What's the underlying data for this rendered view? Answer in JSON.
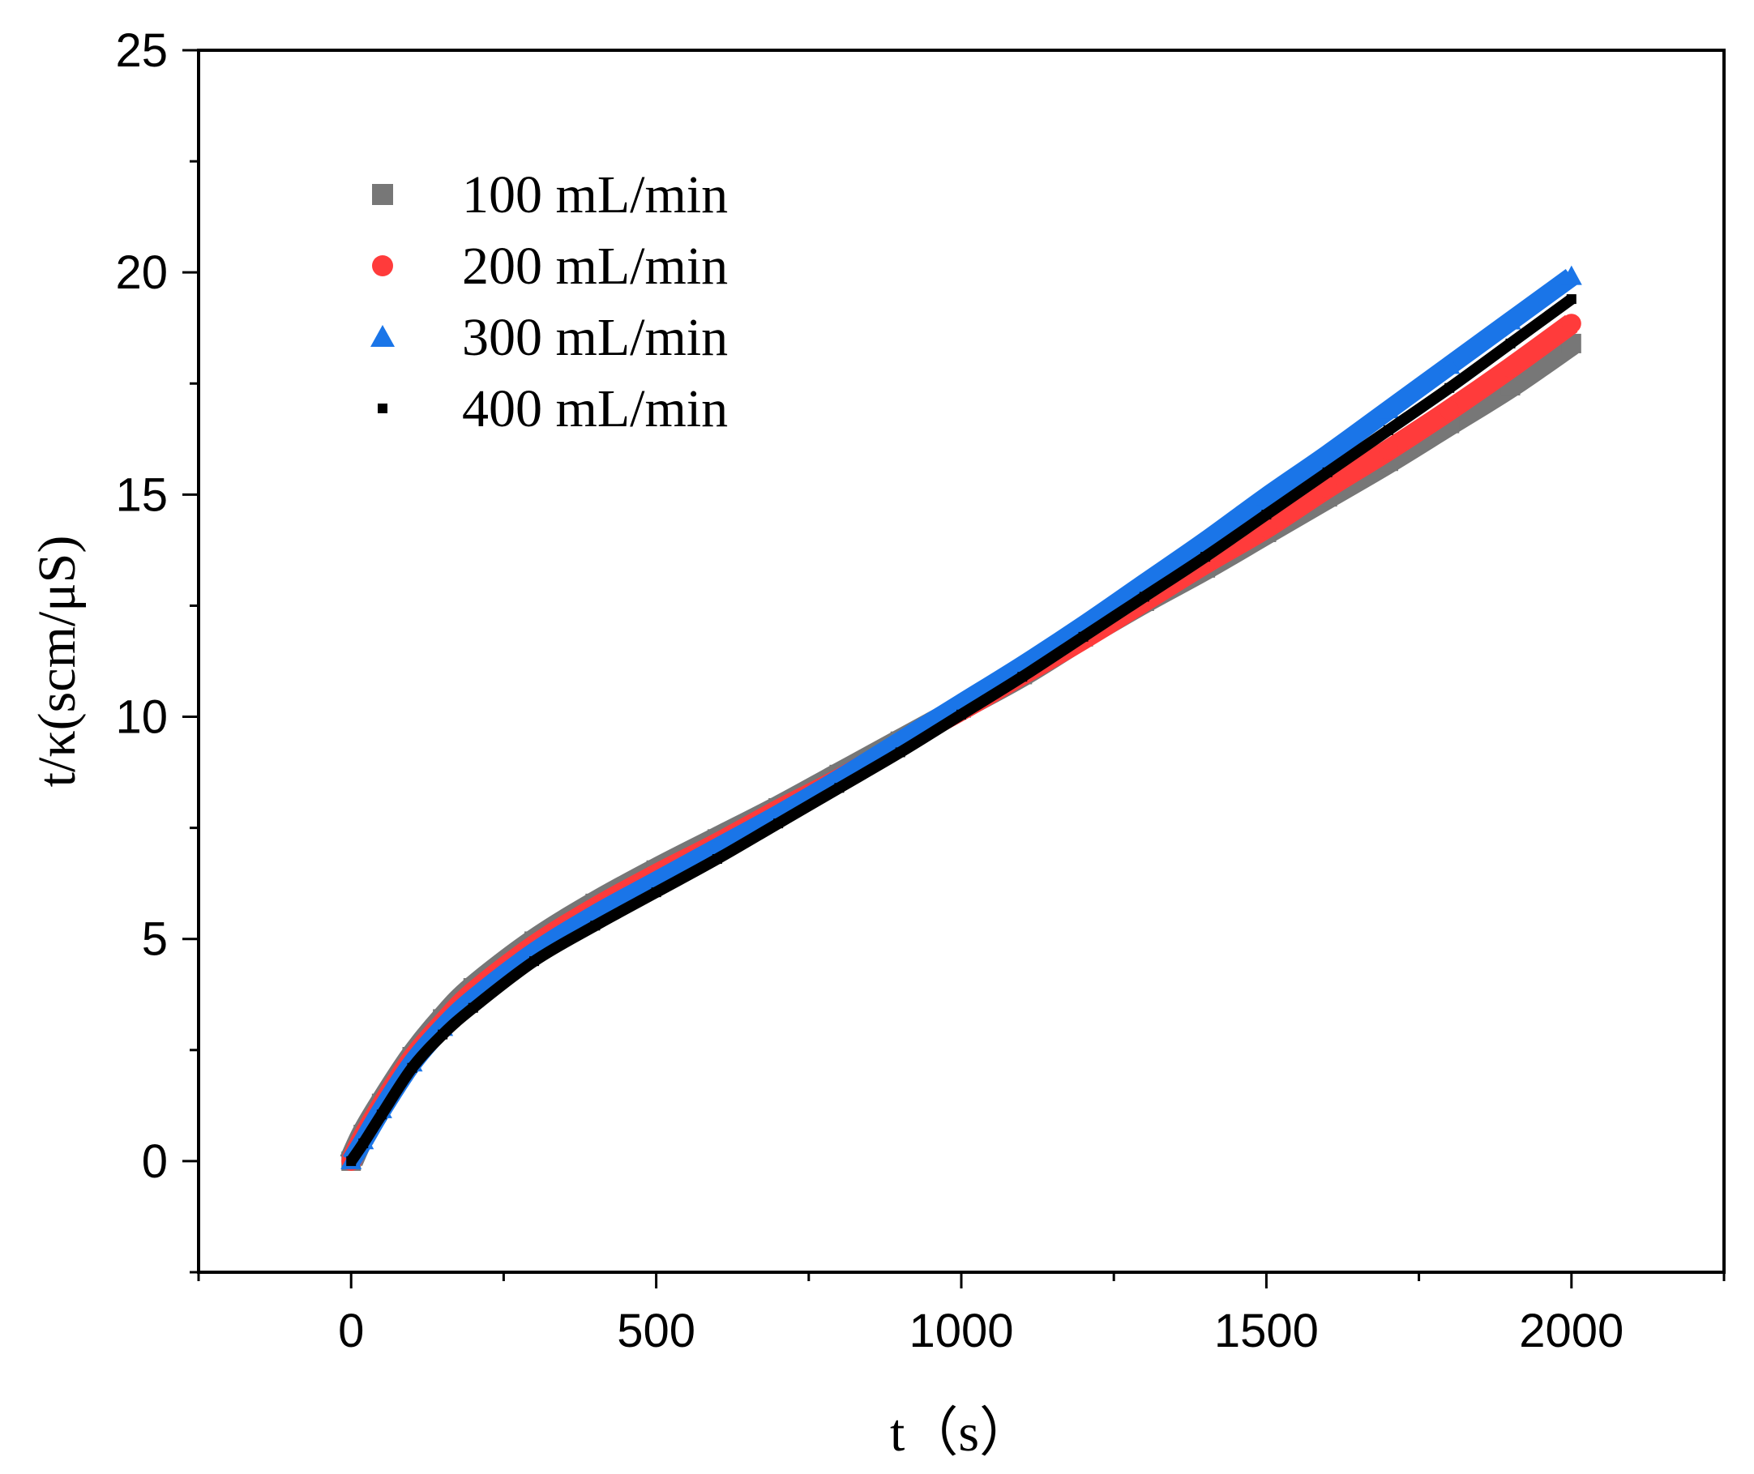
{
  "chart_data": {
    "type": "scatter",
    "xlabel": "t（s）",
    "ylabel": "t/κ(scm/μS)",
    "xlim": [
      -250,
      2250
    ],
    "ylim": [
      -2.5,
      25
    ],
    "xticks": [
      0,
      500,
      1000,
      1500,
      2000
    ],
    "yticks": [
      0,
      5,
      10,
      15,
      20,
      25
    ],
    "legend_position": "top-left",
    "grid": false,
    "series": [
      {
        "name": "100 mL/min",
        "color": "#777777",
        "marker": "square",
        "x": [
          0,
          20,
          50,
          100,
          150,
          200,
          300,
          400,
          500,
          600,
          700,
          800,
          900,
          1000,
          1100,
          1200,
          1300,
          1400,
          1500,
          1600,
          1700,
          1800,
          1900,
          2000
        ],
        "y": [
          0,
          0.6,
          1.3,
          2.35,
          3.2,
          3.9,
          4.95,
          5.8,
          6.55,
          7.25,
          7.95,
          8.7,
          9.45,
          10.2,
          10.95,
          11.8,
          12.6,
          13.35,
          14.15,
          14.95,
          15.75,
          16.6,
          17.45,
          18.4
        ]
      },
      {
        "name": "200 mL/min",
        "color": "#ff3b3b",
        "marker": "circle",
        "x": [
          0,
          20,
          50,
          100,
          150,
          200,
          300,
          400,
          500,
          600,
          700,
          800,
          900,
          1000,
          1100,
          1200,
          1300,
          1400,
          1500,
          1600,
          1700,
          1800,
          1900,
          2000
        ],
        "y": [
          0,
          0.55,
          1.25,
          2.3,
          3.1,
          3.8,
          4.85,
          5.7,
          6.45,
          7.15,
          7.9,
          8.6,
          9.4,
          10.15,
          10.95,
          11.75,
          12.6,
          13.45,
          14.25,
          15.15,
          16.0,
          16.9,
          17.85,
          18.85
        ]
      },
      {
        "name": "300 mL/min",
        "color": "#1a75e8",
        "marker": "triangle",
        "x": [
          0,
          20,
          50,
          100,
          150,
          200,
          300,
          400,
          500,
          600,
          700,
          800,
          900,
          1000,
          1100,
          1200,
          1300,
          1400,
          1500,
          1600,
          1700,
          1800,
          1900,
          2000
        ],
        "y": [
          0,
          0.45,
          1.15,
          2.2,
          3.0,
          3.65,
          4.7,
          5.55,
          6.3,
          7.05,
          7.8,
          8.6,
          9.45,
          10.3,
          11.15,
          12.05,
          13.0,
          13.95,
          14.95,
          15.9,
          16.9,
          17.9,
          18.9,
          19.9
        ]
      },
      {
        "name": "400 mL/min",
        "color": "#000000",
        "marker": "small-square",
        "x": [
          0,
          20,
          50,
          100,
          150,
          200,
          300,
          400,
          500,
          600,
          700,
          800,
          900,
          1000,
          1100,
          1200,
          1300,
          1400,
          1500,
          1600,
          1700,
          1800,
          1900,
          2000
        ],
        "y": [
          0,
          0.4,
          1.05,
          2.1,
          2.85,
          3.45,
          4.5,
          5.3,
          6.05,
          6.8,
          7.6,
          8.4,
          9.2,
          10.05,
          10.9,
          11.8,
          12.7,
          13.6,
          14.55,
          15.5,
          16.45,
          17.4,
          18.4,
          19.4
        ]
      }
    ]
  }
}
